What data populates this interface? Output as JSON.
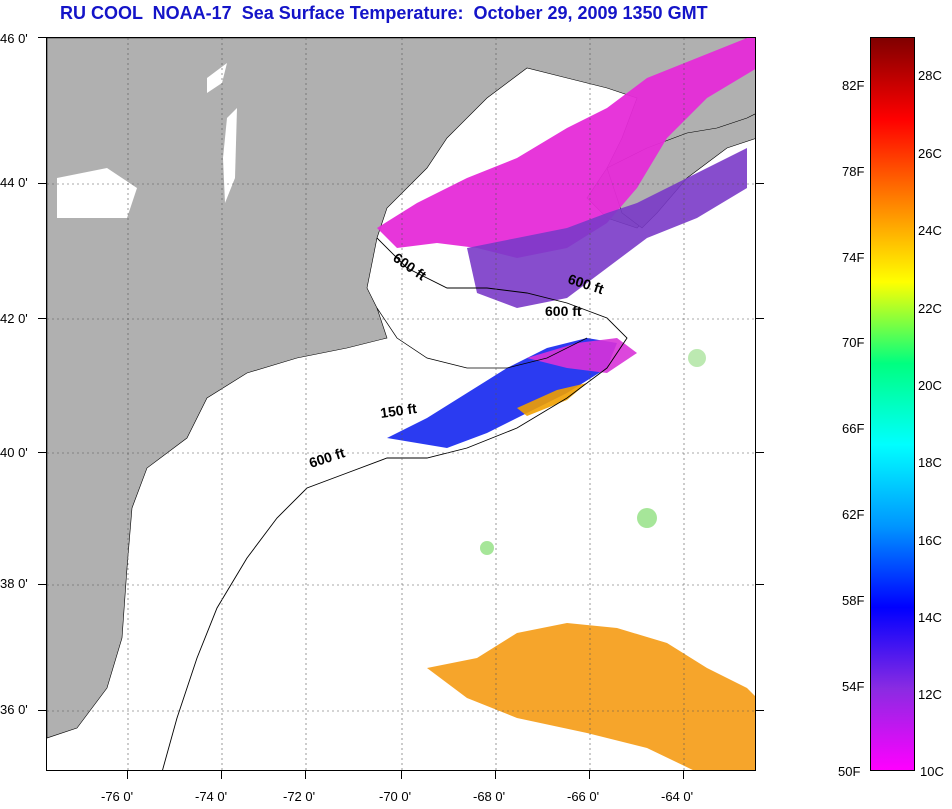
{
  "title": "RU COOL  NOAA-17  Sea Surface Temperature:  October 29, 2009 1350 GMT",
  "map": {
    "lat_labels": [
      "46 0'",
      "44 0'",
      "42 0'",
      "40 0'",
      "38 0'",
      "36 0'"
    ],
    "lon_labels": [
      "-76 0'",
      "-74 0'",
      "-72 0'",
      "-70 0'",
      "-68 0'",
      "-66 0'",
      "-64 0'"
    ],
    "contour_labels": [
      "600 ft",
      "600 ft",
      "600 ft",
      "150 ft",
      "600 ft"
    ],
    "land_color": "#b0b0b0",
    "nodata_color": "#ffffff"
  },
  "colorbar": {
    "fahrenheit_labels": [
      "82F",
      "78F",
      "74F",
      "70F",
      "66F",
      "62F",
      "58F",
      "54F",
      "50F"
    ],
    "celsius_labels": [
      "28C",
      "26C",
      "24C",
      "22C",
      "20C",
      "18C",
      "16C",
      "14C",
      "12C",
      "10C"
    ],
    "colors": [
      "#ff00ff",
      "#8a2be2",
      "#0000ff",
      "#0096ff",
      "#00ffff",
      "#00ff80",
      "#ffff00",
      "#ff8000",
      "#ff0000",
      "#800000"
    ]
  }
}
